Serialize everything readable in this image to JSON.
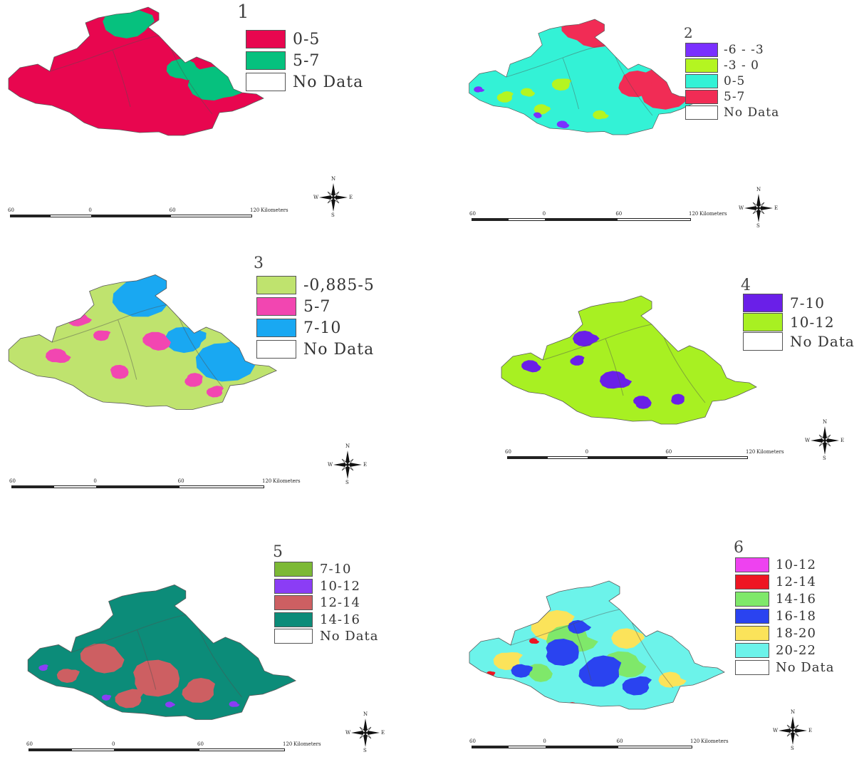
{
  "panels": [
    {
      "number": "1",
      "legend": [
        {
          "label": "0-5",
          "color": "#e8064f"
        },
        {
          "label": "5-7",
          "color": "#06c17e"
        },
        {
          "label": "No Data",
          "color": "#ffffff"
        }
      ]
    },
    {
      "number": "2",
      "legend": [
        {
          "label": "-6 - -3",
          "color": "#7a30ff"
        },
        {
          "label": "-3 - 0",
          "color": "#b4f521"
        },
        {
          "label": "0-5",
          "color": "#33f2d6"
        },
        {
          "label": "5-7",
          "color": "#f12c55"
        },
        {
          "label": "No Data",
          "color": "#ffffff"
        }
      ]
    },
    {
      "number": "3",
      "legend": [
        {
          "label": "-0,885-5",
          "color": "#bfe36e"
        },
        {
          "label": "5-7",
          "color": "#f246b1"
        },
        {
          "label": "7-10",
          "color": "#19a8f2"
        },
        {
          "label": "No Data",
          "color": "#ffffff"
        }
      ]
    },
    {
      "number": "4",
      "legend": [
        {
          "label": "7-10",
          "color": "#6a1fe8"
        },
        {
          "label": "10-12",
          "color": "#a8f022"
        },
        {
          "label": "No Data",
          "color": "#ffffff"
        }
      ]
    },
    {
      "number": "5",
      "legend": [
        {
          "label": "7-10",
          "color": "#7cb935"
        },
        {
          "label": "10-12",
          "color": "#8b3df5"
        },
        {
          "label": "12-14",
          "color": "#cd5f62"
        },
        {
          "label": "14-16",
          "color": "#0c8c79"
        },
        {
          "label": "No Data",
          "color": "#ffffff"
        }
      ]
    },
    {
      "number": "6",
      "legend": [
        {
          "label": "10-12",
          "color": "#ee42f0"
        },
        {
          "label": "12-14",
          "color": "#ee1522"
        },
        {
          "label": "14-16",
          "color": "#7fe86a"
        },
        {
          "label": "16-18",
          "color": "#2a43f0"
        },
        {
          "label": "18-20",
          "color": "#fbe35a"
        },
        {
          "label": "20-22",
          "color": "#6cf3ea"
        },
        {
          "label": "No Data",
          "color": "#ffffff"
        }
      ]
    }
  ],
  "compass": {
    "n": "N",
    "s": "S",
    "e": "E",
    "w": "W"
  },
  "scale": {
    "ticks": [
      "60",
      "0",
      "60",
      "120"
    ],
    "unit": "Kilometers"
  },
  "colors": {
    "border": "#5a5a5a",
    "text": "#333333"
  }
}
